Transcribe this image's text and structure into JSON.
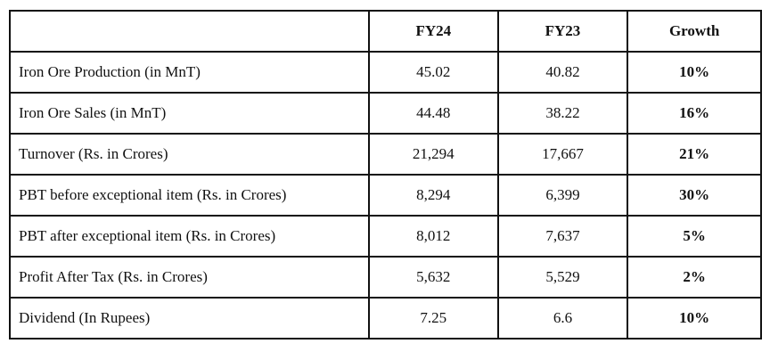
{
  "table": {
    "header": [
      "FY24",
      "FY23",
      "Growth"
    ],
    "rows": [
      [
        "Iron Ore Production (in MnT)",
        "45.02",
        "40.82",
        "10%"
      ],
      [
        "Iron Ore Sales (in MnT)",
        "44.48",
        "38.22",
        "16%"
      ],
      [
        "Turnover (Rs. in Crores)",
        "21,294",
        "17,667",
        "21%"
      ],
      [
        "PBT before exceptional item (Rs. in Crores)",
        "8,294",
        "6,399",
        "30%"
      ],
      [
        "PBT after exceptional item (Rs. in Crores)",
        "8,012",
        "7,637",
        "5%"
      ],
      [
        "Profit After Tax (Rs. in Crores)",
        "5,632",
        "5,529",
        "2%"
      ],
      [
        "Dividend (In Rupees)",
        "7.25",
        "6.6",
        "10%"
      ]
    ]
  }
}
